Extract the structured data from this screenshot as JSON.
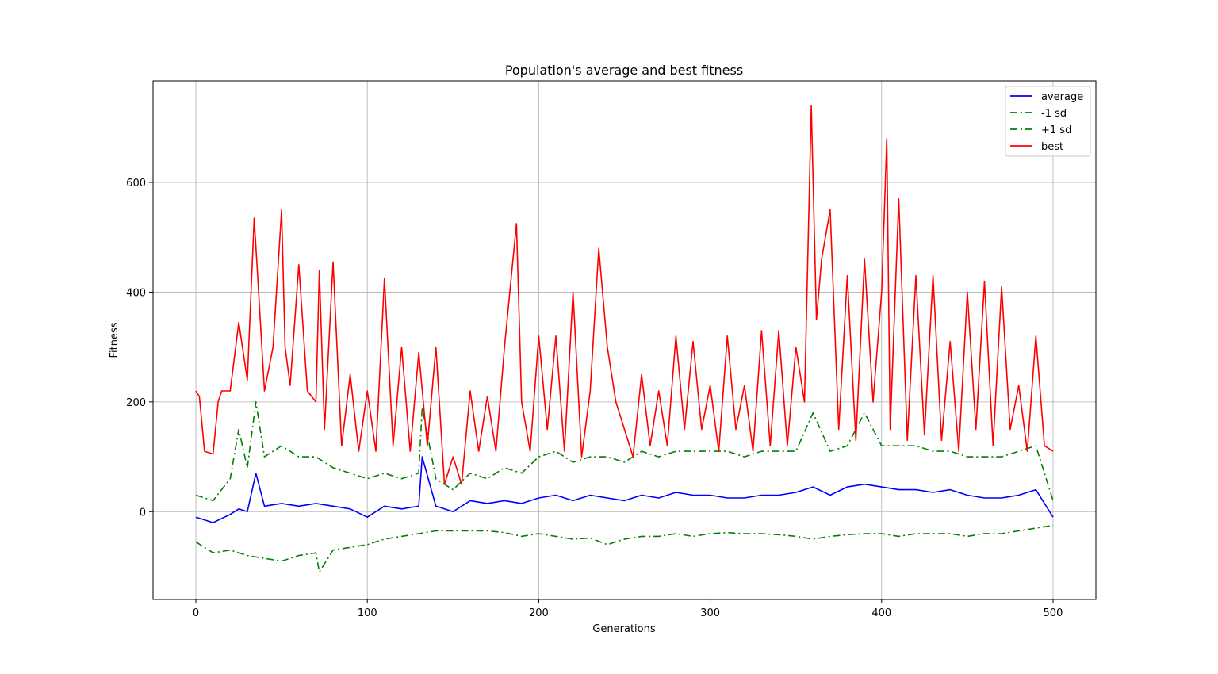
{
  "chart_data": {
    "type": "line",
    "title": "Population's average and best fitness",
    "xlabel": "Generations",
    "ylabel": "Fitness",
    "xlim": [
      -25,
      525
    ],
    "ylim": [
      -160,
      785
    ],
    "xticks": [
      0,
      100,
      200,
      300,
      400,
      500
    ],
    "yticks": [
      0,
      200,
      400,
      600
    ],
    "grid": true,
    "legend_position": "top-right",
    "series": [
      {
        "name": "average",
        "color": "#0000ff",
        "style": "solid",
        "x": [
          0,
          10,
          20,
          25,
          30,
          35,
          40,
          50,
          60,
          70,
          80,
          90,
          100,
          110,
          120,
          130,
          132,
          140,
          150,
          160,
          170,
          180,
          190,
          200,
          210,
          220,
          230,
          240,
          250,
          260,
          270,
          280,
          290,
          300,
          310,
          320,
          330,
          340,
          350,
          360,
          370,
          380,
          390,
          400,
          410,
          420,
          430,
          440,
          450,
          460,
          470,
          480,
          490,
          500
        ],
        "y": [
          -10,
          -20,
          -5,
          5,
          0,
          70,
          10,
          15,
          10,
          15,
          10,
          5,
          -10,
          10,
          5,
          10,
          100,
          10,
          0,
          20,
          15,
          20,
          15,
          25,
          30,
          20,
          30,
          25,
          20,
          30,
          25,
          35,
          30,
          30,
          25,
          25,
          30,
          30,
          35,
          45,
          30,
          45,
          50,
          45,
          40,
          40,
          35,
          40,
          30,
          25,
          25,
          30,
          40,
          -10
        ]
      },
      {
        "name": "-1 sd",
        "color": "#008000",
        "style": "dashdot",
        "x": [
          0,
          10,
          20,
          30,
          40,
          50,
          60,
          70,
          72,
          80,
          90,
          100,
          110,
          120,
          130,
          140,
          150,
          160,
          170,
          180,
          190,
          200,
          210,
          220,
          230,
          240,
          250,
          260,
          270,
          280,
          290,
          300,
          310,
          320,
          330,
          340,
          350,
          360,
          370,
          380,
          390,
          400,
          410,
          420,
          430,
          440,
          450,
          460,
          470,
          480,
          490,
          500
        ],
        "y": [
          -55,
          -75,
          -70,
          -80,
          -85,
          -90,
          -80,
          -75,
          -110,
          -70,
          -65,
          -60,
          -50,
          -45,
          -40,
          -35,
          -35,
          -35,
          -35,
          -38,
          -45,
          -40,
          -45,
          -50,
          -48,
          -60,
          -50,
          -45,
          -45,
          -40,
          -45,
          -40,
          -38,
          -40,
          -40,
          -42,
          -45,
          -50,
          -45,
          -42,
          -40,
          -40,
          -45,
          -40,
          -40,
          -40,
          -45,
          -40,
          -40,
          -35,
          -30,
          -25
        ]
      },
      {
        "name": "+1 sd",
        "color": "#008000",
        "style": "dashdot",
        "x": [
          0,
          10,
          20,
          25,
          30,
          35,
          40,
          50,
          60,
          70,
          80,
          90,
          100,
          110,
          120,
          130,
          132,
          140,
          150,
          160,
          170,
          180,
          190,
          200,
          210,
          220,
          230,
          240,
          250,
          260,
          270,
          280,
          290,
          300,
          310,
          320,
          330,
          340,
          350,
          360,
          370,
          380,
          390,
          400,
          410,
          420,
          430,
          440,
          450,
          460,
          470,
          480,
          490,
          500
        ],
        "y": [
          30,
          20,
          60,
          150,
          80,
          200,
          100,
          120,
          100,
          100,
          80,
          70,
          60,
          70,
          60,
          70,
          190,
          60,
          40,
          70,
          60,
          80,
          70,
          100,
          110,
          90,
          100,
          100,
          90,
          110,
          100,
          110,
          110,
          110,
          110,
          100,
          110,
          110,
          110,
          180,
          110,
          120,
          180,
          120,
          120,
          120,
          110,
          110,
          100,
          100,
          100,
          110,
          120,
          20
        ]
      },
      {
        "name": "best",
        "color": "#ff0000",
        "style": "solid",
        "x": [
          0,
          2,
          5,
          10,
          13,
          15,
          20,
          25,
          30,
          34,
          36,
          40,
          45,
          50,
          52,
          55,
          60,
          65,
          70,
          72,
          75,
          80,
          85,
          90,
          95,
          100,
          105,
          110,
          115,
          120,
          125,
          130,
          135,
          140,
          145,
          150,
          155,
          160,
          165,
          170,
          175,
          180,
          187,
          190,
          195,
          200,
          205,
          210,
          215,
          220,
          225,
          230,
          235,
          240,
          245,
          250,
          255,
          260,
          265,
          270,
          275,
          280,
          285,
          290,
          295,
          300,
          305,
          310,
          315,
          320,
          325,
          330,
          335,
          340,
          345,
          350,
          355,
          359,
          362,
          365,
          370,
          375,
          380,
          385,
          390,
          395,
          400,
          403,
          405,
          410,
          415,
          420,
          425,
          430,
          435,
          440,
          445,
          450,
          455,
          460,
          465,
          470,
          475,
          480,
          485,
          490,
          495,
          500
        ],
        "y": [
          220,
          210,
          110,
          105,
          200,
          220,
          220,
          345,
          240,
          535,
          430,
          220,
          300,
          550,
          300,
          230,
          450,
          220,
          200,
          440,
          150,
          455,
          120,
          250,
          110,
          220,
          110,
          425,
          120,
          300,
          110,
          290,
          120,
          300,
          50,
          100,
          50,
          220,
          110,
          210,
          110,
          300,
          525,
          200,
          110,
          320,
          150,
          320,
          110,
          400,
          100,
          220,
          480,
          300,
          200,
          150,
          100,
          250,
          120,
          220,
          120,
          320,
          150,
          310,
          150,
          230,
          110,
          320,
          150,
          230,
          110,
          330,
          120,
          330,
          120,
          300,
          200,
          740,
          350,
          460,
          550,
          150,
          430,
          130,
          460,
          200,
          400,
          680,
          150,
          570,
          130,
          430,
          140,
          430,
          130,
          310,
          110,
          400,
          150,
          420,
          120,
          410,
          150,
          230,
          110,
          320,
          120,
          110
        ]
      }
    ]
  }
}
